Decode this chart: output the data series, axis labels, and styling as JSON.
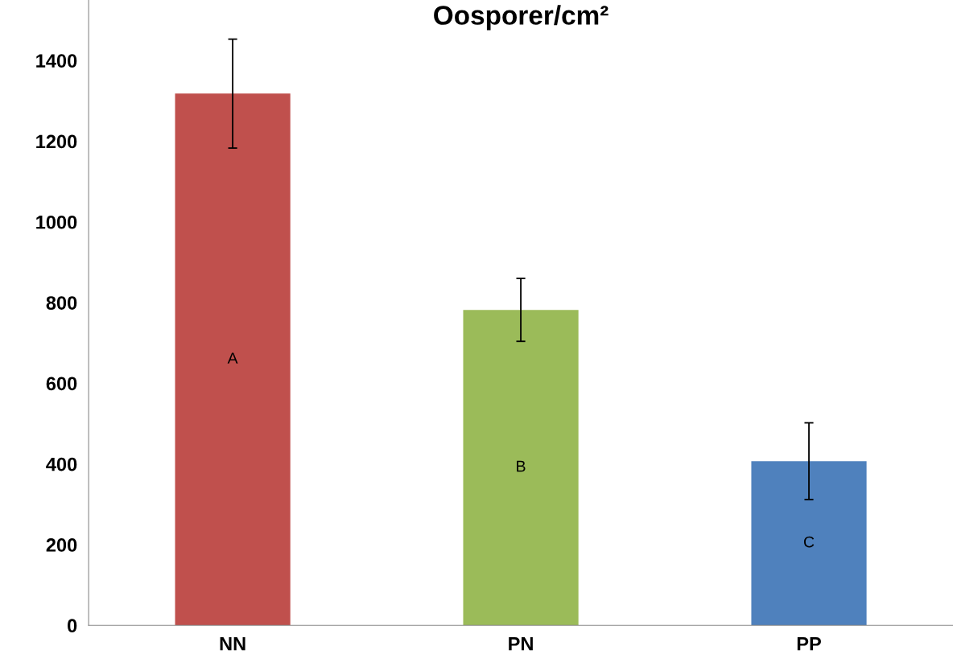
{
  "chart_data": {
    "type": "bar",
    "title": "Oosporer/cm²",
    "categories": [
      "NN",
      "PN",
      "PP"
    ],
    "values": [
      1318,
      782,
      407
    ],
    "errors": [
      135,
      78,
      95
    ],
    "colors": [
      "#c0504d",
      "#9bbb59",
      "#4f81bd"
    ],
    "ylim": [
      0,
      1550
    ],
    "yticks": [
      0,
      200,
      400,
      600,
      800,
      1000,
      1200,
      1400
    ],
    "grid": false,
    "legend": false,
    "annotations": [
      "A",
      "B",
      "C"
    ]
  }
}
